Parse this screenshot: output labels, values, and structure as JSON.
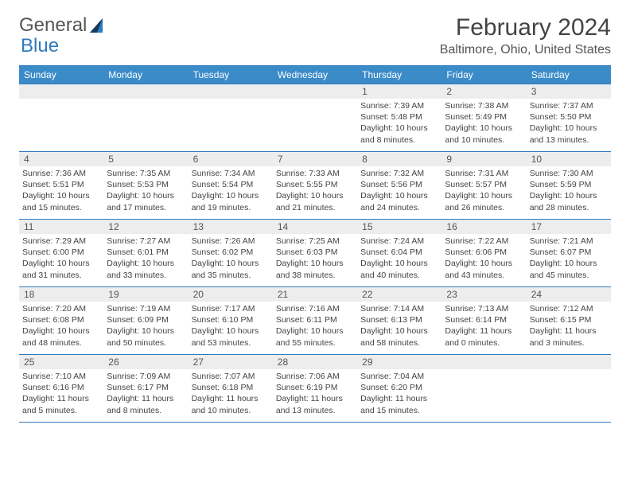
{
  "logo": {
    "text1": "General",
    "text2": "Blue"
  },
  "title": "February 2024",
  "location": "Baltimore, Ohio, United States",
  "colors": {
    "header_bg": "#3b8bc9",
    "border": "#2f7abf",
    "daynum_bg": "#ededed",
    "text": "#444"
  },
  "day_names": [
    "Sunday",
    "Monday",
    "Tuesday",
    "Wednesday",
    "Thursday",
    "Friday",
    "Saturday"
  ],
  "weeks": [
    [
      {
        "day": "",
        "lines": []
      },
      {
        "day": "",
        "lines": []
      },
      {
        "day": "",
        "lines": []
      },
      {
        "day": "",
        "lines": []
      },
      {
        "day": "1",
        "lines": [
          "Sunrise: 7:39 AM",
          "Sunset: 5:48 PM",
          "Daylight: 10 hours",
          "and 8 minutes."
        ]
      },
      {
        "day": "2",
        "lines": [
          "Sunrise: 7:38 AM",
          "Sunset: 5:49 PM",
          "Daylight: 10 hours",
          "and 10 minutes."
        ]
      },
      {
        "day": "3",
        "lines": [
          "Sunrise: 7:37 AM",
          "Sunset: 5:50 PM",
          "Daylight: 10 hours",
          "and 13 minutes."
        ]
      }
    ],
    [
      {
        "day": "4",
        "lines": [
          "Sunrise: 7:36 AM",
          "Sunset: 5:51 PM",
          "Daylight: 10 hours",
          "and 15 minutes."
        ]
      },
      {
        "day": "5",
        "lines": [
          "Sunrise: 7:35 AM",
          "Sunset: 5:53 PM",
          "Daylight: 10 hours",
          "and 17 minutes."
        ]
      },
      {
        "day": "6",
        "lines": [
          "Sunrise: 7:34 AM",
          "Sunset: 5:54 PM",
          "Daylight: 10 hours",
          "and 19 minutes."
        ]
      },
      {
        "day": "7",
        "lines": [
          "Sunrise: 7:33 AM",
          "Sunset: 5:55 PM",
          "Daylight: 10 hours",
          "and 21 minutes."
        ]
      },
      {
        "day": "8",
        "lines": [
          "Sunrise: 7:32 AM",
          "Sunset: 5:56 PM",
          "Daylight: 10 hours",
          "and 24 minutes."
        ]
      },
      {
        "day": "9",
        "lines": [
          "Sunrise: 7:31 AM",
          "Sunset: 5:57 PM",
          "Daylight: 10 hours",
          "and 26 minutes."
        ]
      },
      {
        "day": "10",
        "lines": [
          "Sunrise: 7:30 AM",
          "Sunset: 5:59 PM",
          "Daylight: 10 hours",
          "and 28 minutes."
        ]
      }
    ],
    [
      {
        "day": "11",
        "lines": [
          "Sunrise: 7:29 AM",
          "Sunset: 6:00 PM",
          "Daylight: 10 hours",
          "and 31 minutes."
        ]
      },
      {
        "day": "12",
        "lines": [
          "Sunrise: 7:27 AM",
          "Sunset: 6:01 PM",
          "Daylight: 10 hours",
          "and 33 minutes."
        ]
      },
      {
        "day": "13",
        "lines": [
          "Sunrise: 7:26 AM",
          "Sunset: 6:02 PM",
          "Daylight: 10 hours",
          "and 35 minutes."
        ]
      },
      {
        "day": "14",
        "lines": [
          "Sunrise: 7:25 AM",
          "Sunset: 6:03 PM",
          "Daylight: 10 hours",
          "and 38 minutes."
        ]
      },
      {
        "day": "15",
        "lines": [
          "Sunrise: 7:24 AM",
          "Sunset: 6:04 PM",
          "Daylight: 10 hours",
          "and 40 minutes."
        ]
      },
      {
        "day": "16",
        "lines": [
          "Sunrise: 7:22 AM",
          "Sunset: 6:06 PM",
          "Daylight: 10 hours",
          "and 43 minutes."
        ]
      },
      {
        "day": "17",
        "lines": [
          "Sunrise: 7:21 AM",
          "Sunset: 6:07 PM",
          "Daylight: 10 hours",
          "and 45 minutes."
        ]
      }
    ],
    [
      {
        "day": "18",
        "lines": [
          "Sunrise: 7:20 AM",
          "Sunset: 6:08 PM",
          "Daylight: 10 hours",
          "and 48 minutes."
        ]
      },
      {
        "day": "19",
        "lines": [
          "Sunrise: 7:19 AM",
          "Sunset: 6:09 PM",
          "Daylight: 10 hours",
          "and 50 minutes."
        ]
      },
      {
        "day": "20",
        "lines": [
          "Sunrise: 7:17 AM",
          "Sunset: 6:10 PM",
          "Daylight: 10 hours",
          "and 53 minutes."
        ]
      },
      {
        "day": "21",
        "lines": [
          "Sunrise: 7:16 AM",
          "Sunset: 6:11 PM",
          "Daylight: 10 hours",
          "and 55 minutes."
        ]
      },
      {
        "day": "22",
        "lines": [
          "Sunrise: 7:14 AM",
          "Sunset: 6:13 PM",
          "Daylight: 10 hours",
          "and 58 minutes."
        ]
      },
      {
        "day": "23",
        "lines": [
          "Sunrise: 7:13 AM",
          "Sunset: 6:14 PM",
          "Daylight: 11 hours",
          "and 0 minutes."
        ]
      },
      {
        "day": "24",
        "lines": [
          "Sunrise: 7:12 AM",
          "Sunset: 6:15 PM",
          "Daylight: 11 hours",
          "and 3 minutes."
        ]
      }
    ],
    [
      {
        "day": "25",
        "lines": [
          "Sunrise: 7:10 AM",
          "Sunset: 6:16 PM",
          "Daylight: 11 hours",
          "and 5 minutes."
        ]
      },
      {
        "day": "26",
        "lines": [
          "Sunrise: 7:09 AM",
          "Sunset: 6:17 PM",
          "Daylight: 11 hours",
          "and 8 minutes."
        ]
      },
      {
        "day": "27",
        "lines": [
          "Sunrise: 7:07 AM",
          "Sunset: 6:18 PM",
          "Daylight: 11 hours",
          "and 10 minutes."
        ]
      },
      {
        "day": "28",
        "lines": [
          "Sunrise: 7:06 AM",
          "Sunset: 6:19 PM",
          "Daylight: 11 hours",
          "and 13 minutes."
        ]
      },
      {
        "day": "29",
        "lines": [
          "Sunrise: 7:04 AM",
          "Sunset: 6:20 PM",
          "Daylight: 11 hours",
          "and 15 minutes."
        ]
      },
      {
        "day": "",
        "lines": []
      },
      {
        "day": "",
        "lines": []
      }
    ]
  ]
}
